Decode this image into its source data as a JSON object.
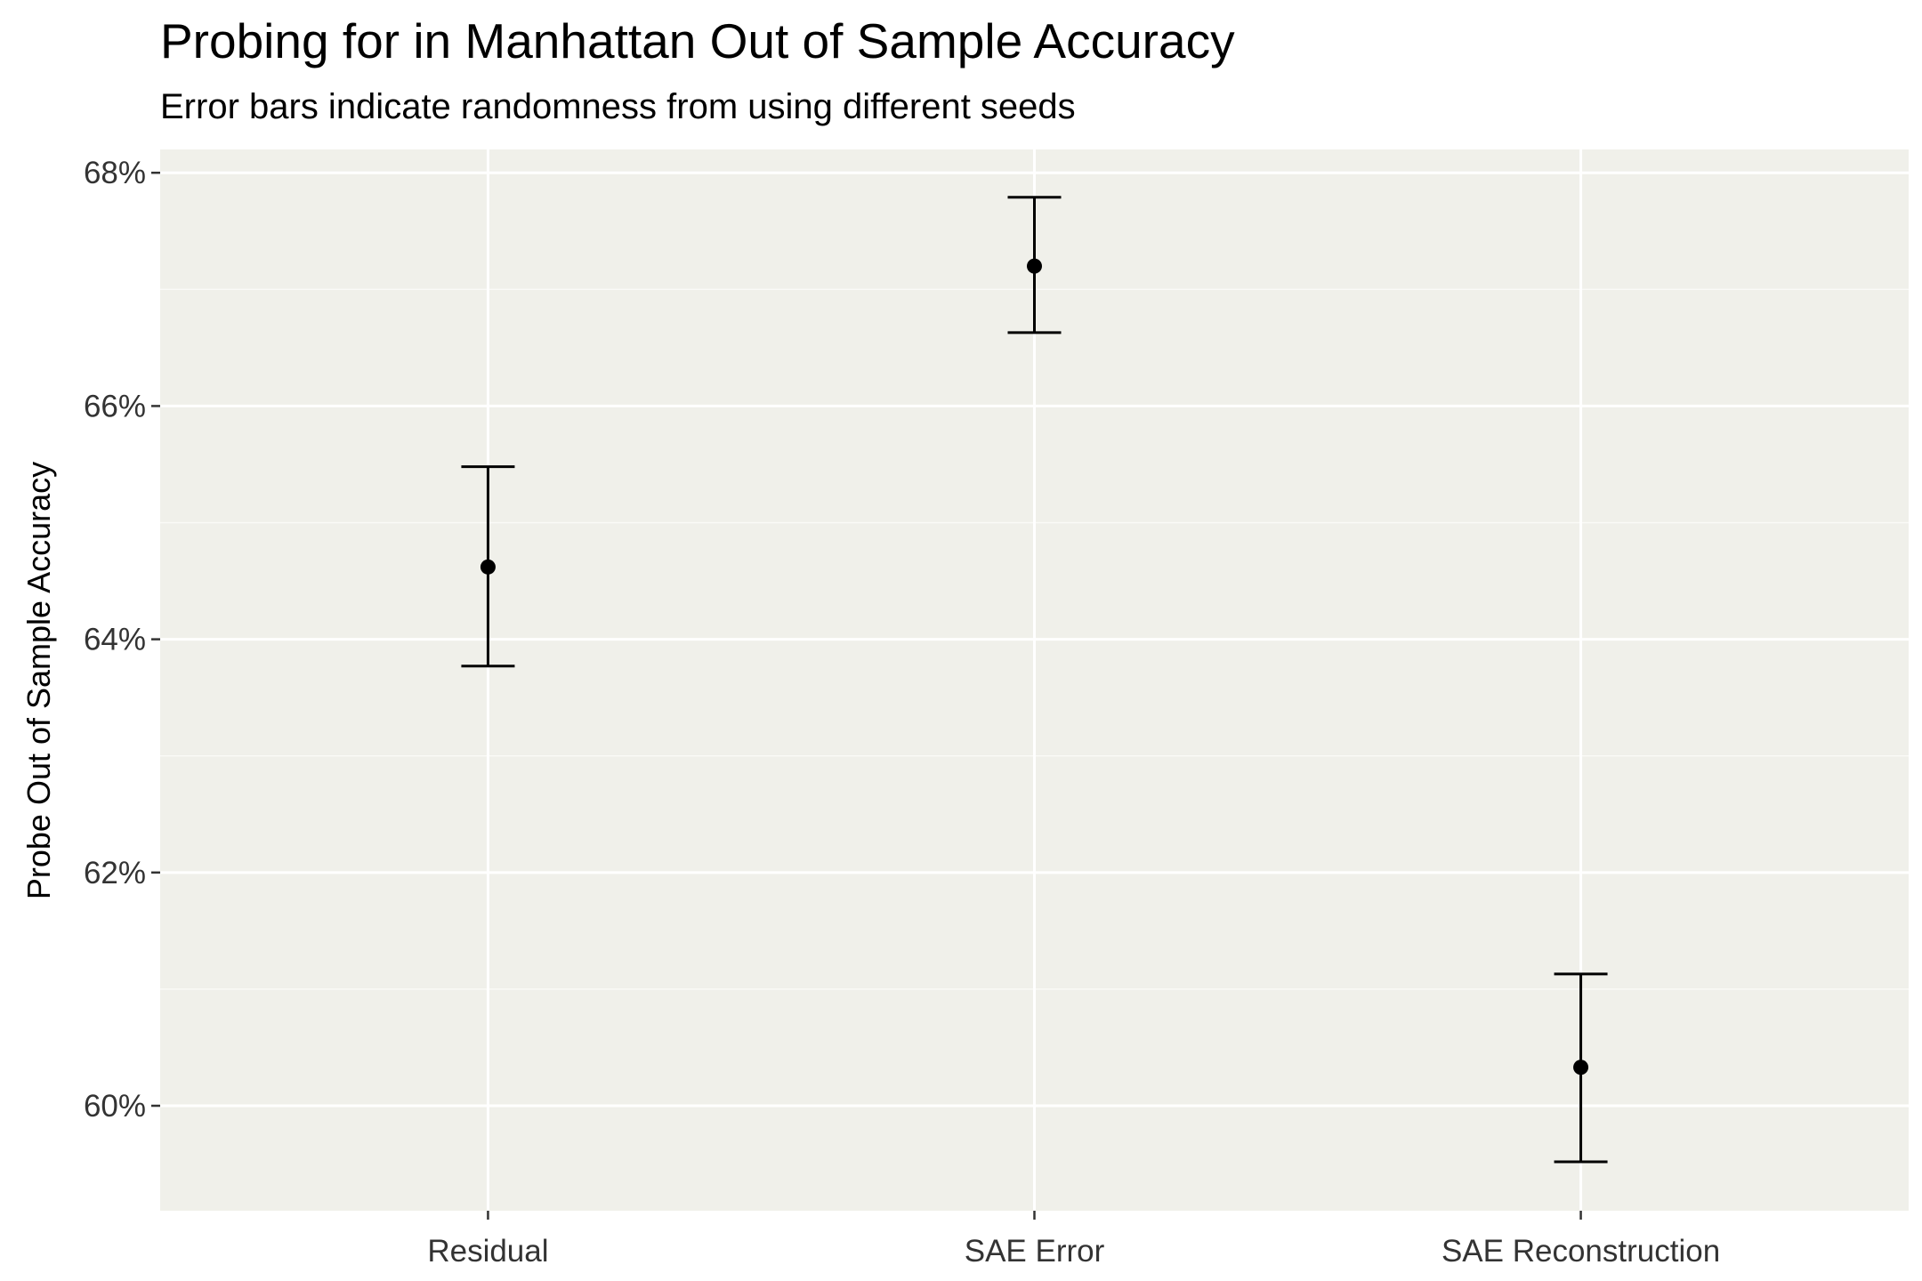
{
  "chart_data": {
    "type": "scatter",
    "title": "Probing for in Manhattan Out of Sample Accuracy",
    "subtitle": "Error bars indicate randomness from using different seeds",
    "xlabel": "",
    "ylabel": "Probe Out of Sample Accuracy",
    "categories": [
      "Residual",
      "SAE Error",
      "SAE Reconstruction"
    ],
    "values": [
      64.62,
      67.2,
      60.33
    ],
    "error_low": [
      63.77,
      66.63,
      59.52
    ],
    "error_high": [
      65.48,
      67.79,
      61.13
    ],
    "y_unit": "%",
    "ylim": [
      59.1,
      68.2
    ],
    "yticks": [
      60,
      62,
      64,
      66,
      68
    ],
    "ytick_labels": [
      "60%",
      "62%",
      "64%",
      "66%",
      "68%"
    ],
    "grid": true,
    "legend": "none",
    "colors": {
      "panel_background": "#f0f0ea",
      "grid_major": "#ffffff",
      "grid_minor": "#fafaf7",
      "marks": "#000000"
    }
  }
}
